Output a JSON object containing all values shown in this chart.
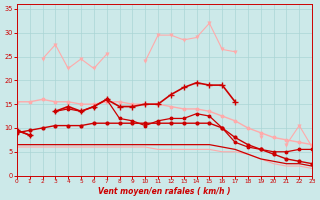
{
  "x": [
    0,
    1,
    2,
    3,
    4,
    5,
    6,
    7,
    8,
    9,
    10,
    11,
    12,
    13,
    14,
    15,
    16,
    17,
    18,
    19,
    20,
    21,
    22,
    23
  ],
  "line_rafales_max_light": [
    null,
    null,
    27.5,
    null,
    null,
    null,
    null,
    null,
    null,
    null,
    null,
    30.0,
    29.5,
    28.5,
    28.5,
    32.0,
    null,
    26.5,
    null,
    null,
    null,
    null,
    null,
    null
  ],
  "line_rafales_pink": [
    null,
    null,
    24.5,
    27.5,
    22.5,
    24.5,
    22.5,
    25.5,
    null,
    null,
    24.0,
    29.5,
    29.5,
    28.5,
    29.0,
    32.0,
    26.5,
    26.0,
    null,
    8.0,
    null,
    6.5,
    10.5,
    6.0
  ],
  "line_vent_moyen_light": [
    15.5,
    15.5,
    16.0,
    15.5,
    15.5,
    15.0,
    15.0,
    15.5,
    15.5,
    15.0,
    15.0,
    15.0,
    14.5,
    14.0,
    14.0,
    13.5,
    12.5,
    11.5,
    10.0,
    9.0,
    8.0,
    7.5,
    7.0,
    6.5
  ],
  "line_vent_main_dark": [
    9.5,
    8.5,
    null,
    13.5,
    14.5,
    13.5,
    14.5,
    16.0,
    14.5,
    14.5,
    15.0,
    15.0,
    17.0,
    18.5,
    19.5,
    19.0,
    19.0,
    15.5,
    null,
    null,
    null,
    null,
    null,
    null
  ],
  "line_vent_lower_dark": [
    9.5,
    8.5,
    null,
    13.5,
    14.0,
    13.5,
    14.5,
    16.0,
    12.0,
    11.5,
    10.5,
    11.5,
    12.0,
    12.0,
    13.0,
    12.5,
    10.0,
    7.0,
    6.0,
    5.5,
    5.0,
    5.0,
    5.5,
    5.5
  ],
  "line_low_dark": [
    9.0,
    9.5,
    10.0,
    10.5,
    10.5,
    10.5,
    11.0,
    11.0,
    11.0,
    11.0,
    11.0,
    11.0,
    11.0,
    11.0,
    11.0,
    11.0,
    10.0,
    8.0,
    6.5,
    5.5,
    4.5,
    3.5,
    3.0,
    2.5
  ],
  "line_bottom_dark": [
    6.5,
    6.5,
    6.5,
    6.5,
    6.5,
    6.5,
    6.5,
    6.5,
    6.5,
    6.5,
    6.5,
    6.5,
    6.5,
    6.5,
    6.5,
    6.5,
    6.0,
    5.5,
    4.5,
    3.5,
    3.0,
    2.5,
    2.5,
    2.0
  ],
  "line_bottom_light": [
    6.0,
    6.0,
    6.0,
    6.0,
    6.0,
    6.0,
    6.0,
    6.0,
    6.0,
    6.0,
    6.0,
    5.5,
    5.5,
    5.5,
    5.5,
    5.5,
    5.0,
    5.0,
    4.5,
    3.5,
    2.5,
    2.0,
    2.0,
    1.5
  ],
  "bg": "#cce9e9",
  "grid_color": "#aad5d5",
  "c_dark": "#cc0000",
  "c_pink": "#ff8888",
  "c_lightpink": "#ffaaaa",
  "xlabel": "Vent moyen/en rafales ( km/h )",
  "ylim": [
    0,
    36
  ],
  "xlim": [
    0,
    23
  ],
  "yticks": [
    0,
    5,
    10,
    15,
    20,
    25,
    30,
    35
  ],
  "xticks": [
    0,
    1,
    2,
    3,
    4,
    5,
    6,
    7,
    8,
    9,
    10,
    11,
    12,
    13,
    14,
    15,
    16,
    17,
    18,
    19,
    20,
    21,
    22,
    23
  ]
}
